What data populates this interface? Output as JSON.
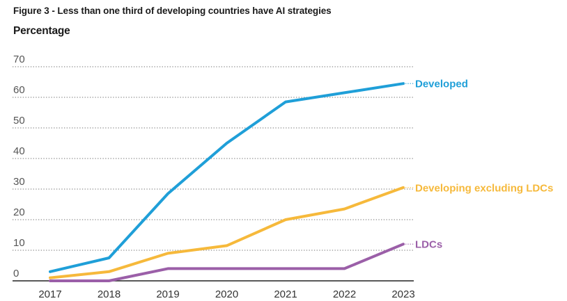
{
  "chart_data": {
    "type": "line",
    "title": "Figure 3 - Less than one third of developing countries have AI strategies",
    "ylabel": "Percentage",
    "xlabel": "",
    "x": [
      "2017",
      "2018",
      "2019",
      "2020",
      "2021",
      "2022",
      "2023"
    ],
    "ylim": [
      0,
      70
    ],
    "yticks": [
      "0",
      "10",
      "20",
      "30",
      "40",
      "50",
      "60",
      "70"
    ],
    "grid": "horizontal-dotted",
    "series": [
      {
        "name": "Developed",
        "color": "#1f9fd8",
        "values": [
          3,
          7.5,
          28.5,
          45,
          58.5,
          61.5,
          64.5
        ]
      },
      {
        "name": "Developing excluding LDCs",
        "color": "#f6b93b",
        "values": [
          1,
          3,
          9,
          11.5,
          20,
          23.5,
          30.5
        ]
      },
      {
        "name": "LDCs",
        "color": "#9b5fa8",
        "values": [
          0,
          0,
          4,
          4,
          4,
          4,
          12
        ]
      }
    ]
  }
}
